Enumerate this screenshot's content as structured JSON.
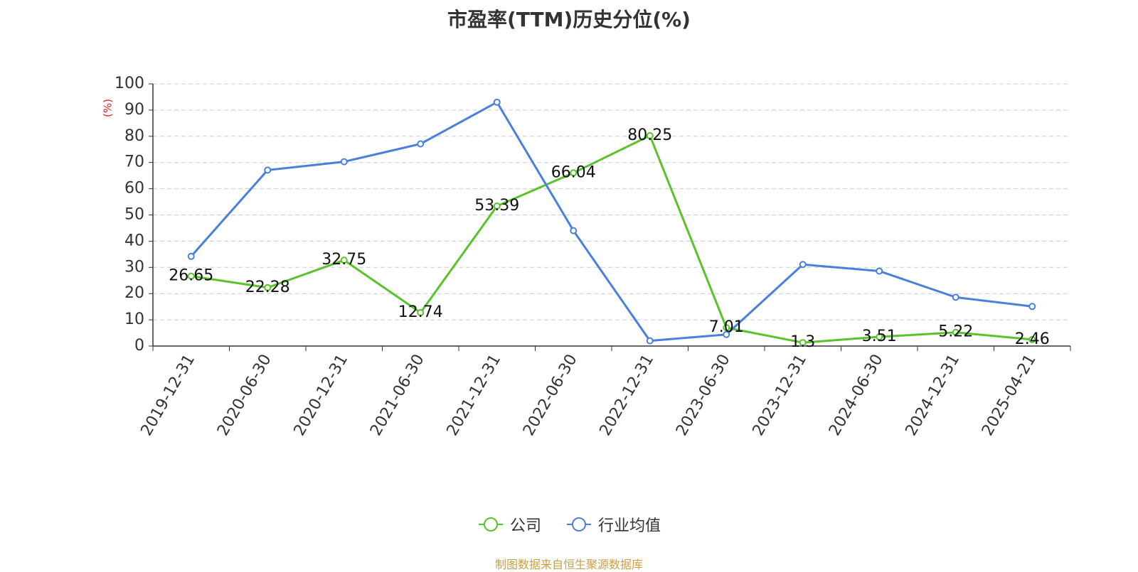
{
  "title": "市盈率(TTM)历史分位(%)",
  "source": "制图数据来自恒生聚源数据库",
  "chart_data": {
    "type": "line",
    "title": "市盈率(TTM)历史分位(%)",
    "ylabel": "(%)",
    "xlabel": "",
    "ylim": [
      0,
      100
    ],
    "yticks": [
      0,
      10,
      20,
      30,
      40,
      50,
      60,
      70,
      80,
      90,
      100
    ],
    "grid": true,
    "legend_position": "bottom",
    "categories": [
      "2019-12-31",
      "2020-06-30",
      "2020-12-31",
      "2021-06-30",
      "2021-12-31",
      "2022-06-30",
      "2022-12-31",
      "2023-06-30",
      "2023-12-31",
      "2024-06-30",
      "2024-12-31",
      "2025-04-21"
    ],
    "series": [
      {
        "name": "公司",
        "color": "#5ac22b",
        "labels": true,
        "values": [
          26.65,
          22.28,
          32.75,
          12.74,
          53.39,
          66.04,
          80.25,
          7.01,
          1.3,
          3.51,
          5.22,
          2.46
        ]
      },
      {
        "name": "行业均值",
        "color": "#4a7fdc",
        "labels": false,
        "values": [
          34.2,
          67.1,
          70.3,
          77.1,
          93.0,
          44.0,
          2.0,
          4.4,
          31.1,
          28.6,
          18.6,
          15.1
        ]
      }
    ]
  }
}
